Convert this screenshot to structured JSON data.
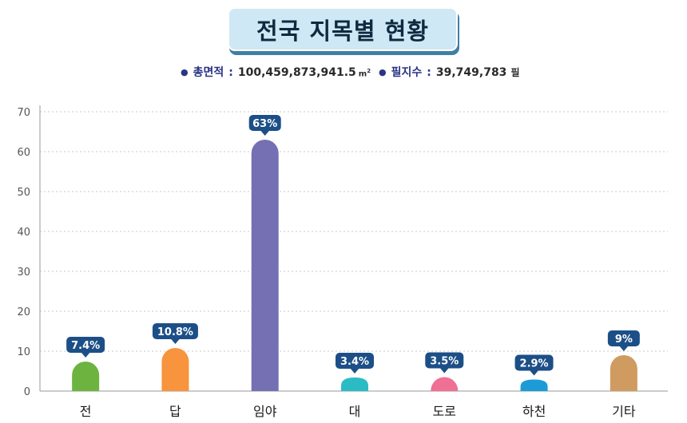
{
  "title": "전국 지목별 현황",
  "summary": {
    "area_label": "총면적",
    "area_value": "100,459,873,941.5",
    "area_unit": "m",
    "area_unit_sup": "2",
    "parcels_label": "필지수",
    "parcels_value": "39,749,783",
    "parcels_unit": "필",
    "separator": ":"
  },
  "chart_data": {
    "type": "bar",
    "title": "전국 지목별 현황",
    "xlabel": "",
    "ylabel": "",
    "ylim": [
      0,
      70
    ],
    "yticks": [
      0,
      10,
      20,
      30,
      40,
      50,
      60,
      70
    ],
    "grid": true,
    "categories": [
      "전",
      "답",
      "임야",
      "대",
      "도로",
      "하천",
      "기타"
    ],
    "values": [
      7.4,
      10.8,
      63,
      3.4,
      3.5,
      2.9,
      9
    ],
    "data_labels": [
      "7.4%",
      "10.8%",
      "63%",
      "3.4%",
      "3.5%",
      "2.9%",
      "9%"
    ],
    "colors": [
      "#6db33f",
      "#f7943d",
      "#7570b3",
      "#2bbbc5",
      "#ef6f95",
      "#1d9bd7",
      "#cf9b60"
    ],
    "label_color": "#1c4f87"
  }
}
